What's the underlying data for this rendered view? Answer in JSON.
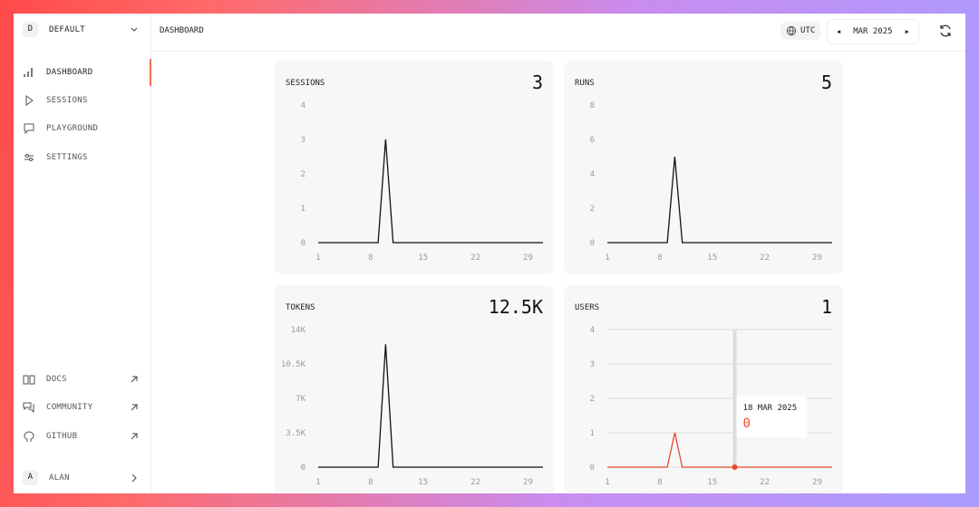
{
  "sidebar": {
    "workspace_initial": "D",
    "workspace": "DEFAULT",
    "nav": [
      "DASHBOARD",
      "SESSIONS",
      "PLAYGROUND",
      "SETTINGS"
    ],
    "links": [
      "DOCS",
      "COMMUNITY",
      "GITHUB"
    ],
    "user_initial": "A",
    "user": "ALAN"
  },
  "header": {
    "title": "DASHBOARD",
    "timezone": "UTC",
    "month": "MAR 2025"
  },
  "charts": [
    {
      "type": "line",
      "title": "SESSIONS",
      "total": 3,
      "color": "#111111",
      "grid": false,
      "x": [
        1,
        2,
        3,
        4,
        5,
        6,
        7,
        8,
        9,
        10,
        11,
        12,
        13,
        14,
        15,
        16,
        17,
        18,
        19,
        20,
        21,
        22,
        23,
        24,
        25,
        26,
        27,
        28,
        29,
        30,
        31
      ],
      "values": [
        0,
        0,
        0,
        0,
        0,
        0,
        0,
        0,
        0,
        3,
        0,
        0,
        0,
        0,
        0,
        0,
        0,
        0,
        0,
        0,
        0,
        0,
        0,
        0,
        0,
        0,
        0,
        0,
        0,
        0,
        0
      ],
      "xlim": [
        1,
        31
      ],
      "xticks": [
        1,
        8,
        15,
        22,
        29
      ],
      "ylim": [
        0,
        4
      ],
      "yticks": [
        0,
        1,
        2,
        3,
        4
      ]
    },
    {
      "type": "line",
      "title": "RUNS",
      "total": 5,
      "color": "#111111",
      "grid": false,
      "x": [
        1,
        2,
        3,
        4,
        5,
        6,
        7,
        8,
        9,
        10,
        11,
        12,
        13,
        14,
        15,
        16,
        17,
        18,
        19,
        20,
        21,
        22,
        23,
        24,
        25,
        26,
        27,
        28,
        29,
        30,
        31
      ],
      "values": [
        0,
        0,
        0,
        0,
        0,
        0,
        0,
        0,
        0,
        5,
        0,
        0,
        0,
        0,
        0,
        0,
        0,
        0,
        0,
        0,
        0,
        0,
        0,
        0,
        0,
        0,
        0,
        0,
        0,
        0,
        0
      ],
      "xlim": [
        1,
        31
      ],
      "xticks": [
        1,
        8,
        15,
        22,
        29
      ],
      "ylim": [
        0,
        8
      ],
      "yticks": [
        0,
        2,
        4,
        6,
        8
      ]
    },
    {
      "type": "line",
      "title": "TOKENS",
      "total": "12.5K",
      "color": "#111111",
      "grid": false,
      "x": [
        1,
        2,
        3,
        4,
        5,
        6,
        7,
        8,
        9,
        10,
        11,
        12,
        13,
        14,
        15,
        16,
        17,
        18,
        19,
        20,
        21,
        22,
        23,
        24,
        25,
        26,
        27,
        28,
        29,
        30,
        31
      ],
      "values": [
        0,
        0,
        0,
        0,
        0,
        0,
        0,
        0,
        0,
        12500,
        0,
        0,
        0,
        0,
        0,
        0,
        0,
        0,
        0,
        0,
        0,
        0,
        0,
        0,
        0,
        0,
        0,
        0,
        0,
        0,
        0
      ],
      "xlim": [
        1,
        31
      ],
      "xticks": [
        1,
        8,
        15,
        22,
        29
      ],
      "ylim": [
        0,
        14000
      ],
      "yticks": [
        0,
        {
          "value": 3500,
          "label": "3.5K"
        },
        {
          "value": 7000,
          "label": "7K"
        },
        {
          "value": 10500,
          "label": "10.5K"
        },
        {
          "value": 14000,
          "label": "14K"
        }
      ]
    },
    {
      "type": "line",
      "title": "USERS",
      "total": 1,
      "color": "#e8482b",
      "grid": true,
      "x": [
        1,
        2,
        3,
        4,
        5,
        6,
        7,
        8,
        9,
        10,
        11,
        12,
        13,
        14,
        15,
        16,
        17,
        18,
        19,
        20,
        21,
        22,
        23,
        24,
        25,
        26,
        27,
        28,
        29,
        30,
        31
      ],
      "values": [
        0,
        0,
        0,
        0,
        0,
        0,
        0,
        0,
        0,
        1,
        0,
        0,
        0,
        0,
        0,
        0,
        0,
        0,
        0,
        0,
        0,
        0,
        0,
        0,
        0,
        0,
        0,
        0,
        0,
        0,
        0
      ],
      "xlim": [
        1,
        31
      ],
      "xticks": [
        1,
        8,
        15,
        22,
        29
      ],
      "ylim": [
        0,
        4
      ],
      "yticks": [
        0,
        1,
        2,
        3,
        4
      ],
      "tooltip": {
        "index": 17,
        "date": "18 MAR 2025",
        "value": 0
      }
    }
  ]
}
